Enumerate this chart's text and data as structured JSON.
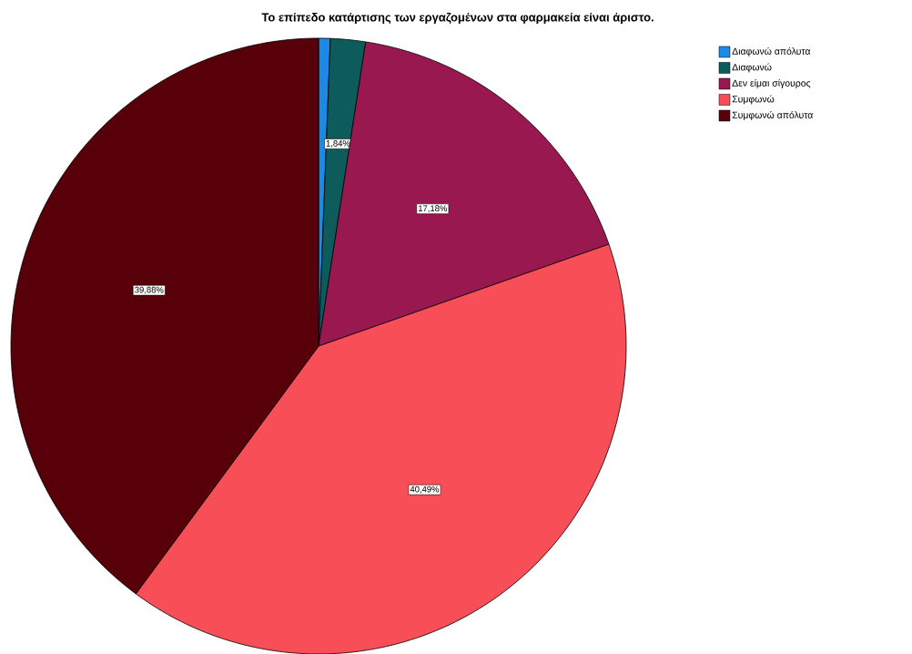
{
  "chart_data": {
    "type": "pie",
    "title": "Το επίπεδο κατάρτισης των εργαζομένων στα φαρμακεία είναι άριστο.",
    "categories": [
      "Διαφωνώ απόλυτα",
      "Διαφωνώ",
      "Δεν είμαι σίγουρος",
      "Συμφωνώ",
      "Συμφωνώ απόλυτα"
    ],
    "values": [
      0.61,
      1.84,
      17.18,
      40.49,
      39.88
    ],
    "value_labels": [
      null,
      "1,84%",
      "17,18%",
      "40,49%",
      "39,88%"
    ],
    "colors": [
      "#1e88e5",
      "#0d5b5b",
      "#9a1850",
      "#f74e57",
      "#58000a"
    ],
    "legend": "top right"
  }
}
